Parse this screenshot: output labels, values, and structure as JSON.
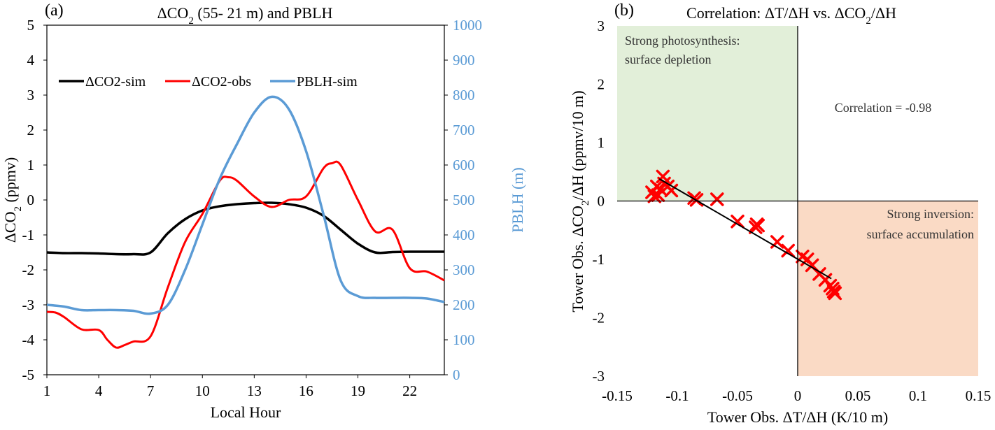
{
  "chart_data": [
    {
      "panel": "(a)",
      "type": "line",
      "title_parts": [
        "ΔCO",
        "2",
        " (55- 21 m) and PBLH"
      ],
      "xlabel": "Local Hour",
      "ylabel_parts": [
        "ΔCO",
        "2",
        " (ppmv)"
      ],
      "y2label": "PBLH (m)",
      "xlim": [
        1,
        24
      ],
      "ylim": [
        -5,
        5
      ],
      "y2lim": [
        0,
        1000
      ],
      "xticks": [
        1,
        4,
        7,
        10,
        13,
        16,
        19,
        22
      ],
      "yticks": [
        -5,
        -4,
        -3,
        -2,
        -1,
        0,
        1,
        2,
        3,
        4,
        5
      ],
      "y2ticks": [
        0,
        100,
        200,
        300,
        400,
        500,
        600,
        700,
        800,
        900,
        1000
      ],
      "grid": false,
      "legend": "upper-left",
      "colors": {
        "sim": "#000000",
        "obs": "#ff0000",
        "pblh": "#5B9BD5"
      },
      "series": [
        {
          "name": "ΔCO2-sim",
          "axis": "left",
          "x": [
            1,
            2,
            3,
            4,
            5,
            6,
            7,
            8,
            9,
            10,
            11,
            12,
            13,
            14,
            15,
            16,
            17,
            18,
            19,
            20,
            21,
            22,
            23,
            24
          ],
          "values": [
            -1.5,
            -1.52,
            -1.52,
            -1.53,
            -1.55,
            -1.55,
            -1.5,
            -0.95,
            -0.55,
            -0.3,
            -0.18,
            -0.12,
            -0.09,
            -0.08,
            -0.12,
            -0.22,
            -0.45,
            -0.85,
            -1.25,
            -1.5,
            -1.49,
            -1.48,
            -1.48,
            -1.48
          ]
        },
        {
          "name": "ΔCO2-obs",
          "axis": "left",
          "x": [
            1,
            1.5,
            2,
            3,
            4,
            4.5,
            5,
            5.5,
            6,
            7,
            8,
            9,
            10,
            11,
            11.5,
            12,
            13,
            14,
            15,
            16,
            17,
            17.5,
            18,
            19,
            20,
            21,
            22,
            23,
            24
          ],
          "values": [
            -3.2,
            -3.22,
            -3.35,
            -3.7,
            -3.72,
            -4.0,
            -4.22,
            -4.15,
            -4.05,
            -3.9,
            -2.5,
            -1.2,
            -0.4,
            0.55,
            0.65,
            0.55,
            0.1,
            -0.2,
            0.0,
            0.1,
            0.9,
            1.05,
            1.0,
            0.0,
            -0.9,
            -0.85,
            -1.95,
            -2.05,
            -2.3
          ]
        },
        {
          "name": "PBLH-sim",
          "axis": "right",
          "x": [
            1,
            2,
            3,
            4,
            5,
            6,
            7,
            8,
            9,
            10,
            11,
            12,
            13,
            14,
            15,
            16,
            17,
            18,
            19,
            20,
            21,
            22,
            23,
            24
          ],
          "values": [
            200,
            195,
            185,
            185,
            185,
            183,
            175,
            200,
            300,
            430,
            560,
            660,
            750,
            795,
            760,
            640,
            460,
            270,
            225,
            220,
            220,
            220,
            218,
            208
          ]
        }
      ]
    },
    {
      "panel": "(b)",
      "type": "scatter",
      "title_parts": [
        "Correlation: ΔT/ΔH vs. ΔCO",
        "2",
        "/ΔH"
      ],
      "xlabel": "Tower Obs. ΔT/ΔH (K/10 m)",
      "ylabel_parts": [
        "Tower Obs. ΔCO",
        "2",
        "/ΔH (ppmv/10 m)"
      ],
      "xlim": [
        -0.15,
        0.15
      ],
      "ylim": [
        -3,
        3
      ],
      "xticks": [
        -0.15,
        -0.1,
        -0.05,
        0,
        0.05,
        0.1,
        0.15
      ],
      "yticks": [
        -3,
        -2,
        -1,
        0,
        1,
        2,
        3
      ],
      "grid": false,
      "annotation": "Correlation = -0.98",
      "quadrant_labels": {
        "upper_left": [
          "Strong photosynthesis:",
          "surface depletion"
        ],
        "lower_right": [
          "Strong inversion:",
          "surface accumulation"
        ]
      },
      "colors": {
        "upper_left_fill": "#E2EFD9",
        "lower_right_fill": "#F8CBAD",
        "marker": "#ff0000",
        "fit": "#000000"
      },
      "points": [
        [
          -0.121,
          0.15
        ],
        [
          -0.119,
          0.08
        ],
        [
          -0.117,
          0.25
        ],
        [
          -0.116,
          0.1
        ],
        [
          -0.114,
          0.2
        ],
        [
          -0.112,
          0.42
        ],
        [
          -0.111,
          0.3
        ],
        [
          -0.108,
          0.25
        ],
        [
          -0.105,
          0.18
        ],
        [
          -0.086,
          0.05
        ],
        [
          -0.084,
          0.02
        ],
        [
          -0.067,
          0.03
        ],
        [
          -0.05,
          -0.35
        ],
        [
          -0.035,
          -0.45
        ],
        [
          -0.034,
          -0.4
        ],
        [
          -0.033,
          -0.42
        ],
        [
          -0.017,
          -0.7
        ],
        [
          -0.008,
          -0.85
        ],
        [
          0.004,
          -0.95
        ],
        [
          0.008,
          -1.0
        ],
        [
          0.012,
          -1.1
        ],
        [
          0.018,
          -1.25
        ],
        [
          0.023,
          -1.35
        ],
        [
          0.027,
          -1.45
        ],
        [
          0.029,
          -1.5
        ],
        [
          0.03,
          -1.55
        ],
        [
          0.031,
          -1.58
        ]
      ],
      "fit_line": {
        "x": [
          -0.115,
          0.028
        ],
        "y": [
          0.38,
          -1.33
        ]
      }
    }
  ]
}
